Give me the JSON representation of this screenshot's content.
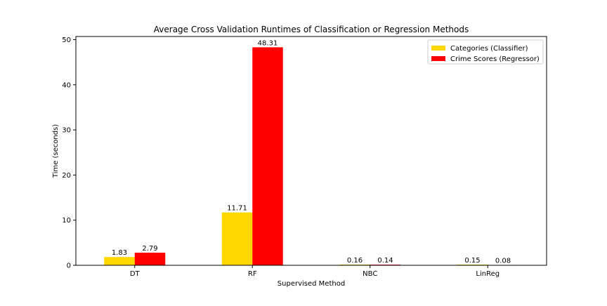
{
  "chart_data": {
    "type": "bar",
    "title": "Average Cross Validation Runtimes of Classification or Regression Methods",
    "xlabel": "Supervised Method",
    "ylabel": "Time (seconds)",
    "categories": [
      "DT",
      "RF",
      "NBC",
      "LinReg"
    ],
    "series": [
      {
        "name": "Categories (Classifier)",
        "color": "#FFD700",
        "values": [
          1.83,
          11.71,
          0.16,
          0.15
        ],
        "labels": [
          "1.83",
          "11.71",
          "0.16",
          "0.15"
        ]
      },
      {
        "name": "Crime Scores (Regressor)",
        "color": "#FF0000",
        "values": [
          2.79,
          48.31,
          0.14,
          0.08
        ],
        "labels": [
          "2.79",
          "48.31",
          "0.14",
          "0.08"
        ]
      }
    ],
    "ylim": [
      0,
      50.7
    ],
    "yticks": [
      0,
      10,
      20,
      30,
      40,
      50
    ],
    "grid": false,
    "legend_position": "top-right"
  }
}
